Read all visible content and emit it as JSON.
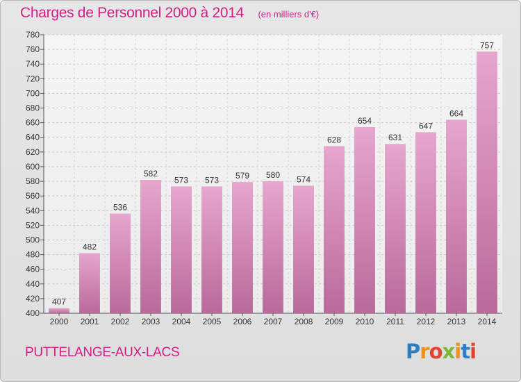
{
  "title": "Charges de Personnel 2000 à 2014",
  "subtitle": "(en milliers d'€)",
  "commune": "PUTTELANGE-AUX-LACS",
  "logo": {
    "letters": [
      "P",
      "r",
      "o",
      "x",
      "i",
      "t",
      "i"
    ],
    "colors": [
      "#2d7fc4",
      "#f29111",
      "#e8402f",
      "#7bb63d",
      "#f29111",
      "#2d7fc4",
      "#e8402f"
    ]
  },
  "chart_data": {
    "type": "bar",
    "categories": [
      "2000",
      "2001",
      "2002",
      "2003",
      "2004",
      "2005",
      "2006",
      "2007",
      "2008",
      "2009",
      "2010",
      "2011",
      "2012",
      "2013",
      "2014"
    ],
    "values": [
      407,
      482,
      536,
      582,
      573,
      573,
      579,
      580,
      574,
      628,
      654,
      631,
      647,
      664,
      757
    ],
    "ylim": [
      400,
      780
    ],
    "ytick_step": 20,
    "grid": true,
    "bar_color": "#d98cbc"
  }
}
